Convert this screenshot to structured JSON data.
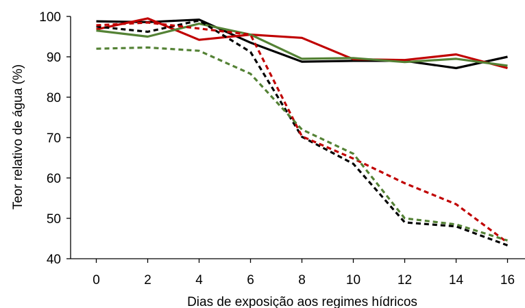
{
  "chart_data": {
    "type": "line",
    "title": "",
    "xlabel": "Dias de exposição aos regimes hídricos",
    "ylabel": "Teor relativo de água (%)",
    "x": [
      0,
      2,
      4,
      6,
      8,
      10,
      12,
      14,
      16
    ],
    "xlim": [
      -1,
      17
    ],
    "ylim": [
      40,
      100
    ],
    "yticks": [
      40,
      50,
      60,
      70,
      80,
      90,
      100
    ],
    "grid": false,
    "legend": "none",
    "series": [
      {
        "color": "#000000",
        "style": "solid",
        "values": [
          98.8,
          98.6,
          99.2,
          93.5,
          88.8,
          89.0,
          89.0,
          87.2,
          90.0
        ]
      },
      {
        "color": "#c00000",
        "style": "solid",
        "values": [
          96.8,
          99.5,
          94.2,
          95.5,
          94.7,
          89.4,
          89.2,
          90.6,
          87.2
        ]
      },
      {
        "color": "#548235",
        "style": "solid",
        "values": [
          96.5,
          95.0,
          98.2,
          95.5,
          89.5,
          89.7,
          88.7,
          89.5,
          87.8
        ]
      },
      {
        "color": "#000000",
        "style": "dashed",
        "values": [
          97.5,
          96.2,
          99.0,
          91.2,
          70.2,
          63.5,
          49.0,
          48.0,
          43.3
        ]
      },
      {
        "color": "#c00000",
        "style": "dashed",
        "values": [
          97.8,
          98.5,
          97.0,
          95.5,
          70.3,
          64.8,
          58.7,
          53.5,
          44.0
        ]
      },
      {
        "color": "#548235",
        "style": "dashed",
        "values": [
          92.0,
          92.3,
          91.5,
          85.8,
          72.0,
          66.0,
          50.0,
          48.5,
          44.5
        ]
      }
    ]
  }
}
